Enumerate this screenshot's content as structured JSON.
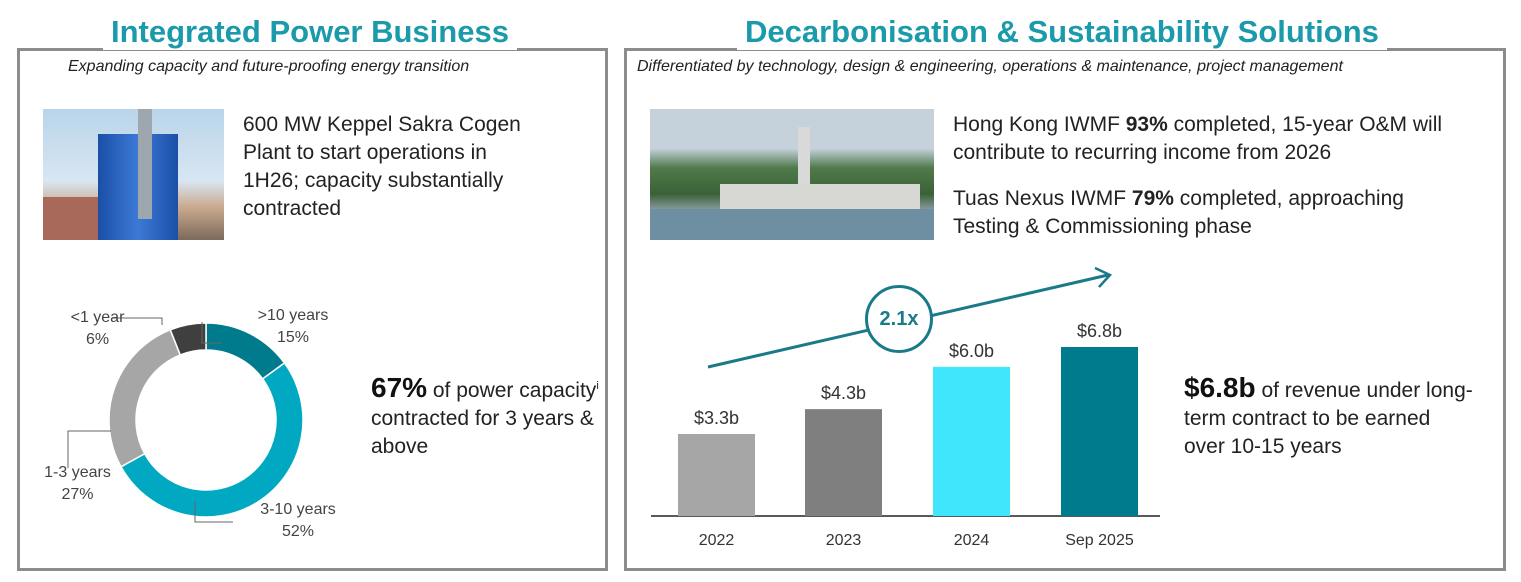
{
  "left": {
    "title": "Integrated Power Business",
    "subtitle": "Expanding capacity and future-proofing energy transition",
    "plant_text": "600 MW Keppel Sakra Cogen Plant to start operations in 1H26; capacity substantially contracted",
    "highlight_value": "67%",
    "highlight_text_a": " of power capacity",
    "highlight_sup": "i",
    "highlight_text_b": " contracted for 3 years & above"
  },
  "right": {
    "title": "Decarbonisation & Sustainability Solutions",
    "subtitle": "Differentiated by technology, design & engineering, operations & maintenance, project management",
    "hk_a": "Hong Kong IWMF ",
    "hk_b": "93%",
    "hk_c": " completed, 15-year O&M will contribute to recurring income from 2026",
    "tuas_a": "Tuas Nexus IWMF ",
    "tuas_b": "79%",
    "tuas_c": " completed, approaching Testing & Commissioning phase",
    "growth_label": "2.1x",
    "highlight_value": "$6.8b",
    "highlight_text": " of revenue under long-term contract to be earned over 10-15 years"
  },
  "chart_data": [
    {
      "type": "pie",
      "style": "donut",
      "categories": [
        ">10 years",
        "3-10 years",
        "1-3 years",
        "<1 year"
      ],
      "values": [
        15,
        52,
        27,
        6
      ],
      "value_labels": [
        "15%",
        "52%",
        "27%",
        "6%"
      ],
      "colors": [
        "#007b8e",
        "#00a8c1",
        "#a6a6a6",
        "#3f3f3f"
      ]
    },
    {
      "type": "bar",
      "categories": [
        "2022",
        "2023",
        "2024",
        "Sep 2025"
      ],
      "values": [
        3.3,
        4.3,
        6.0,
        6.8
      ],
      "value_labels": [
        "$3.3b",
        "$4.3b",
        "$6.0b",
        "$6.8b"
      ],
      "colors": [
        "#a6a6a6",
        "#7f7f7f",
        "#40e6fc",
        "#007b8e"
      ],
      "ylim": [
        0,
        6.8
      ]
    }
  ]
}
